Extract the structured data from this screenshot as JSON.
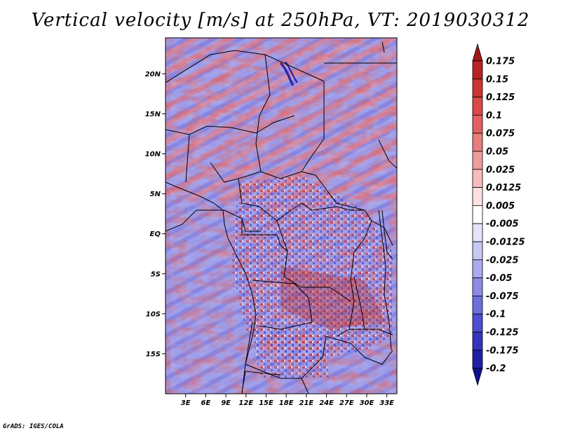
{
  "title": "Vertical velocity [m/s] at 250hPa, VT: 2019030312",
  "credit": "GrADS: IGES/COLA",
  "map": {
    "lon_range": [
      0,
      34.5
    ],
    "lat_range": [
      -20,
      24.5
    ],
    "lat_ticks": [
      {
        "value": 20,
        "label": "20N"
      },
      {
        "value": 15,
        "label": "15N"
      },
      {
        "value": 10,
        "label": "10N"
      },
      {
        "value": 5,
        "label": "5N"
      },
      {
        "value": 0,
        "label": "EQ"
      },
      {
        "value": -5,
        "label": "5S"
      },
      {
        "value": -10,
        "label": "10S"
      },
      {
        "value": -15,
        "label": "15S"
      }
    ],
    "lon_ticks": [
      {
        "value": 3,
        "label": "3E"
      },
      {
        "value": 6,
        "label": "6E"
      },
      {
        "value": 9,
        "label": "9E"
      },
      {
        "value": 12,
        "label": "12E"
      },
      {
        "value": 15,
        "label": "15E"
      },
      {
        "value": 18,
        "label": "18E"
      },
      {
        "value": 21,
        "label": "21E"
      },
      {
        "value": 24,
        "label": "24E"
      },
      {
        "value": 27,
        "label": "27E"
      },
      {
        "value": 30,
        "label": "30E"
      },
      {
        "value": 33,
        "label": "33E"
      }
    ]
  },
  "colorbar": {
    "labels": [
      "0.175",
      "0.15",
      "0.125",
      "0.1",
      "0.075",
      "0.05",
      "0.025",
      "0.0125",
      "0.005",
      "-0.005",
      "-0.0125",
      "-0.025",
      "-0.05",
      "-0.075",
      "-0.1",
      "-0.125",
      "-0.175",
      "-0.2"
    ],
    "colors": [
      "#a01818",
      "#b82424",
      "#cc3333",
      "#da4848",
      "#e26060",
      "#ea7c7c",
      "#f09c9c",
      "#f6bcbc",
      "#fbe0e0",
      "#ffffff",
      "#e4e4fa",
      "#c8c8f4",
      "#aaaaee",
      "#8c8ce6",
      "#6e6edc",
      "#4e4ed0",
      "#3434bc",
      "#2020a4",
      "#10108c"
    ]
  }
}
